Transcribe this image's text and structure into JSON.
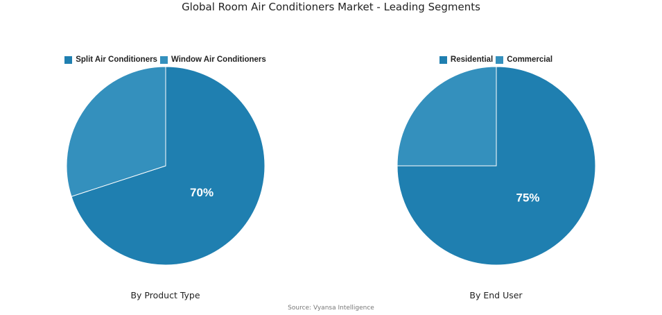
{
  "title": "Global Room Air Conditioners Market - Leading Segments",
  "source": "Source: Vyansa Intelligence",
  "chart_data": [
    {
      "type": "pie",
      "caption": "By Product Type",
      "legend_position": "top",
      "slices": [
        {
          "label": "Split Air Conditioners",
          "value": 70,
          "color": "#1f7fb0",
          "data_label": "70%"
        },
        {
          "label": "Window Air Conditioners",
          "value": 30,
          "color": "#3490bd",
          "data_label": ""
        }
      ]
    },
    {
      "type": "pie",
      "caption": "By End User",
      "legend_position": "top",
      "slices": [
        {
          "label": "Residential",
          "value": 75,
          "color": "#1f7fb0",
          "data_label": "75%"
        },
        {
          "label": "Commercial",
          "value": 25,
          "color": "#3490bd",
          "data_label": ""
        }
      ]
    }
  ]
}
